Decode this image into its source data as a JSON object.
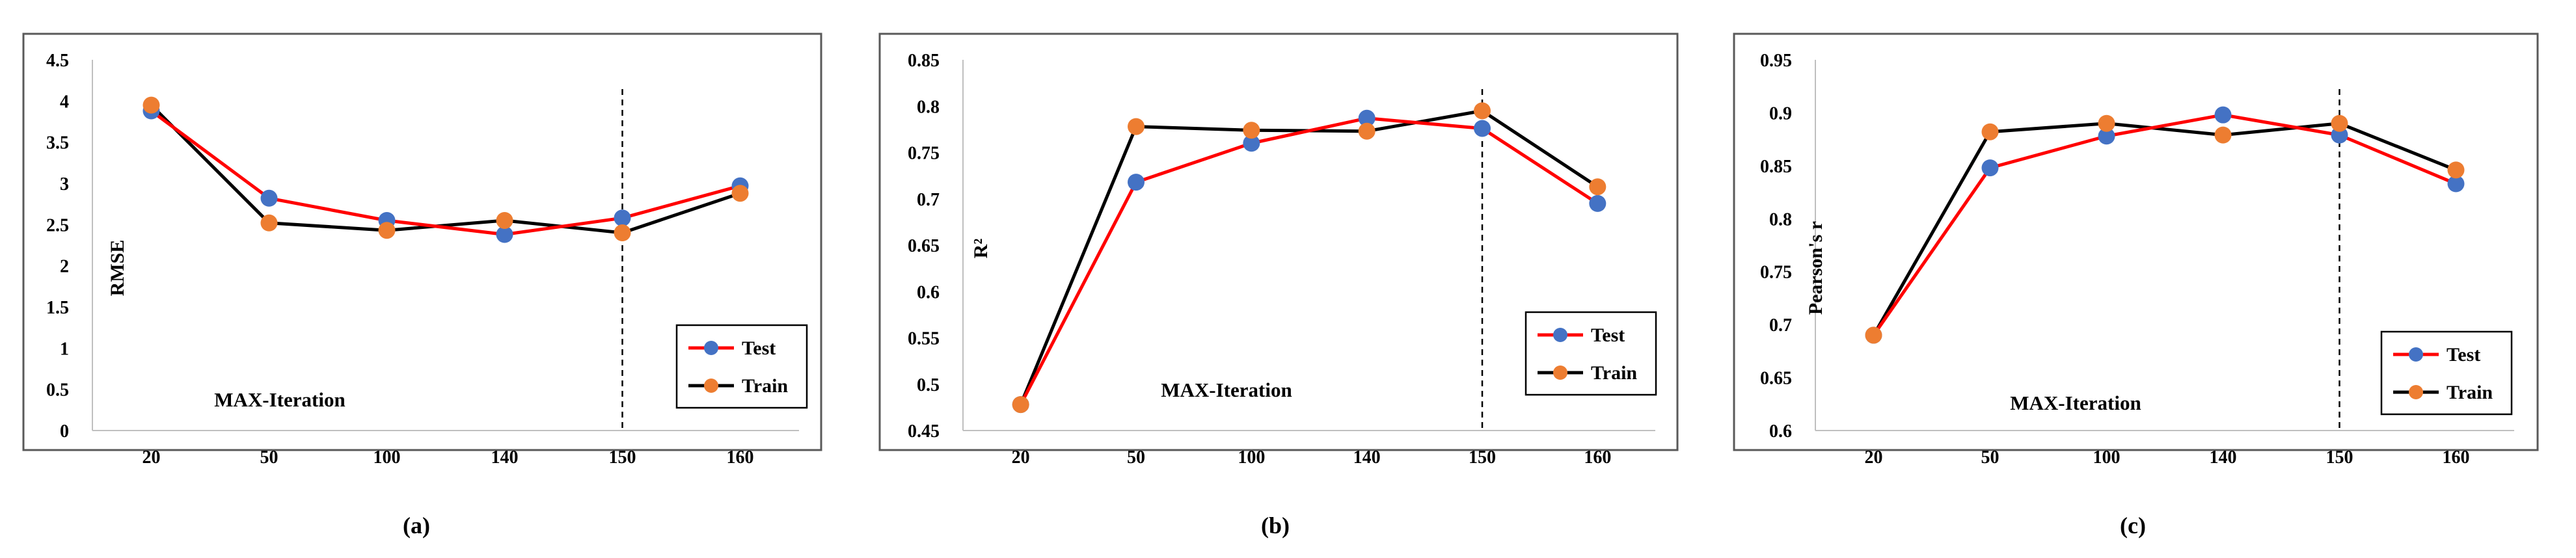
{
  "colors": {
    "test": "#ff0000",
    "train": "#000000",
    "test_marker": "#4472c4",
    "train_marker": "#ed7d31"
  },
  "chart_data": [
    {
      "type": "line",
      "panel_label": "(a)",
      "ylabel": "RMSE",
      "xlabel": "MAX-Iteration",
      "categories": [
        "20",
        "50",
        "100",
        "140",
        "150",
        "160"
      ],
      "ylim": [
        0,
        4.5
      ],
      "yticks": [
        "0",
        "0.5",
        "1",
        "1.5",
        "2",
        "2.5",
        "3",
        "3.5",
        "4",
        "4.5"
      ],
      "highlight_category": "150",
      "legend": [
        "Test",
        "Train"
      ],
      "series": [
        {
          "name": "Test",
          "values": [
            3.88,
            2.82,
            2.55,
            2.38,
            2.58,
            2.97
          ]
        },
        {
          "name": "Train",
          "values": [
            3.95,
            2.52,
            2.43,
            2.55,
            2.4,
            2.88
          ]
        }
      ]
    },
    {
      "type": "line",
      "panel_label": "(b)",
      "ylabel": "R²",
      "xlabel": "MAX-Iteration",
      "categories": [
        "20",
        "50",
        "100",
        "140",
        "150",
        "160"
      ],
      "ylim": [
        0.45,
        0.85
      ],
      "yticks": [
        "0.45",
        "0.5",
        "0.55",
        "0.6",
        "0.65",
        "0.7",
        "0.75",
        "0.8",
        "0.85"
      ],
      "highlight_category": "150",
      "legend": [
        "Test",
        "Train"
      ],
      "series": [
        {
          "name": "Test",
          "values": [
            0.478,
            0.718,
            0.76,
            0.787,
            0.776,
            0.695
          ]
        },
        {
          "name": "Train",
          "values": [
            0.478,
            0.778,
            0.774,
            0.773,
            0.795,
            0.713
          ]
        }
      ]
    },
    {
      "type": "line",
      "panel_label": "(c)",
      "ylabel": "Pearson's r",
      "xlabel": "MAX-Iteration",
      "categories": [
        "20",
        "50",
        "100",
        "140",
        "150",
        "160"
      ],
      "ylim": [
        0.6,
        0.95
      ],
      "yticks": [
        "0.6",
        "0.65",
        "0.7",
        "0.75",
        "0.8",
        "0.85",
        "0.9",
        "0.95"
      ],
      "highlight_category": "150",
      "legend": [
        "Test",
        "Train"
      ],
      "series": [
        {
          "name": "Test",
          "values": [
            0.69,
            0.848,
            0.878,
            0.898,
            0.879,
            0.833
          ]
        },
        {
          "name": "Train",
          "values": [
            0.69,
            0.882,
            0.89,
            0.879,
            0.89,
            0.846
          ]
        }
      ]
    }
  ]
}
